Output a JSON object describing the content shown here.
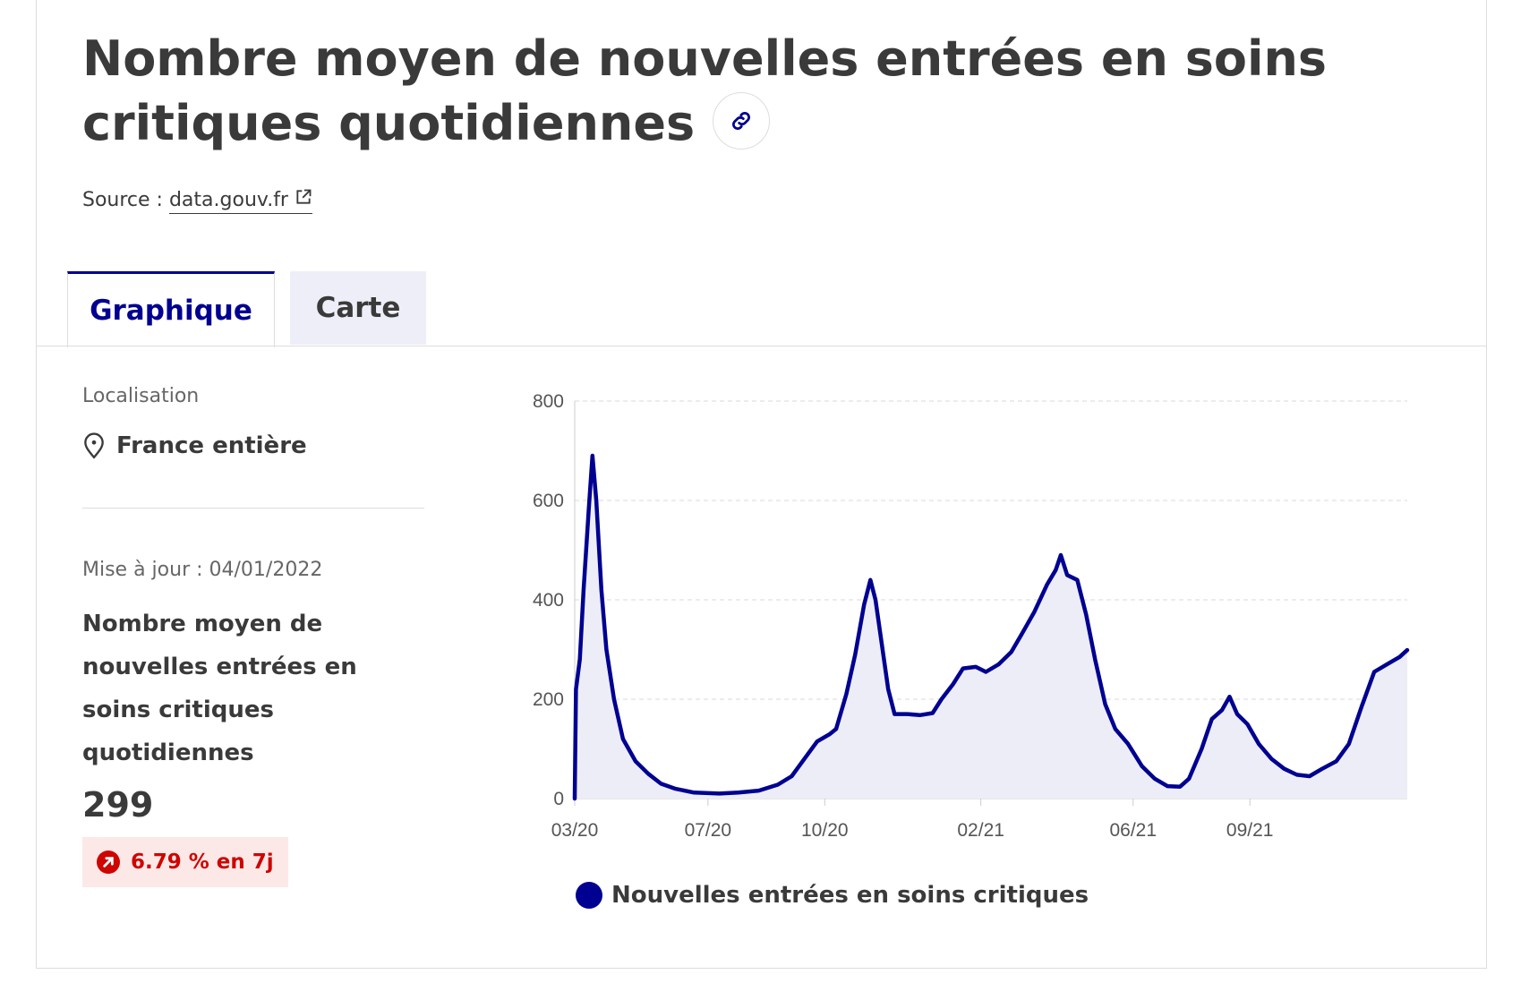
{
  "header": {
    "title": "Nombre moyen de nouvelles entrées en soins critiques quotidiennes",
    "source_prefix": "Source :",
    "source_link": "data.gouv.fr",
    "link_icon": "link-icon",
    "external_icon": "external-link-icon"
  },
  "tabs": [
    {
      "label": "Graphique",
      "active": true
    },
    {
      "label": "Carte",
      "active": false
    }
  ],
  "sidebar": {
    "location_label": "Localisation",
    "location_value": "France entière",
    "location_icon": "map-pin-icon",
    "update_text": "Mise à jour : 04/01/2022",
    "kpi_label": "Nombre moyen de nouvelles entrées en soins critiques quotidiennes",
    "kpi_value": "299",
    "trend_text": "6.79 % en 7j",
    "trend_icon": "arrow-up-right-icon",
    "trend_color": "#ce0500"
  },
  "colors": {
    "accent": "#000091",
    "fill": "#ededf7",
    "grid": "#d8d8d8"
  },
  "chart_data": {
    "type": "area",
    "title": "",
    "xlabel": "",
    "ylabel": "",
    "ylim": [
      0,
      800
    ],
    "yticks": [
      0,
      200,
      400,
      600,
      800
    ],
    "xtick_labels": [
      "03/20",
      "07/20",
      "10/20",
      "02/21",
      "06/21",
      "09/21"
    ],
    "xtick_dates": [
      "2020-03-18",
      "2020-07-01",
      "2020-10-01",
      "2021-02-01",
      "2021-06-01",
      "2021-09-01"
    ],
    "xlim": [
      "2020-03-18",
      "2022-01-03"
    ],
    "grid": true,
    "legend_position": "bottom",
    "series": [
      {
        "name": "Nouvelles entrées en soins critiques",
        "color": "#000091",
        "points": [
          [
            "2020-03-18",
            0
          ],
          [
            "2020-03-19",
            220
          ],
          [
            "2020-03-22",
            280
          ],
          [
            "2020-03-25",
            420
          ],
          [
            "2020-03-29",
            580
          ],
          [
            "2020-04-01",
            690
          ],
          [
            "2020-04-04",
            600
          ],
          [
            "2020-04-08",
            420
          ],
          [
            "2020-04-12",
            300
          ],
          [
            "2020-04-18",
            200
          ],
          [
            "2020-04-25",
            120
          ],
          [
            "2020-05-05",
            75
          ],
          [
            "2020-05-15",
            50
          ],
          [
            "2020-05-25",
            30
          ],
          [
            "2020-06-05",
            20
          ],
          [
            "2020-06-20",
            12
          ],
          [
            "2020-07-10",
            10
          ],
          [
            "2020-07-25",
            12
          ],
          [
            "2020-08-10",
            16
          ],
          [
            "2020-08-25",
            28
          ],
          [
            "2020-09-05",
            45
          ],
          [
            "2020-09-15",
            80
          ],
          [
            "2020-09-25",
            115
          ],
          [
            "2020-10-05",
            130
          ],
          [
            "2020-10-10",
            140
          ],
          [
            "2020-10-18",
            210
          ],
          [
            "2020-10-25",
            290
          ],
          [
            "2020-11-01",
            390
          ],
          [
            "2020-11-06",
            440
          ],
          [
            "2020-11-10",
            400
          ],
          [
            "2020-11-15",
            310
          ],
          [
            "2020-11-20",
            220
          ],
          [
            "2020-11-25",
            170
          ],
          [
            "2020-12-05",
            170
          ],
          [
            "2020-12-15",
            168
          ],
          [
            "2020-12-25",
            172
          ],
          [
            "2021-01-01",
            200
          ],
          [
            "2021-01-10",
            230
          ],
          [
            "2021-01-18",
            262
          ],
          [
            "2021-01-28",
            265
          ],
          [
            "2021-02-05",
            255
          ],
          [
            "2021-02-15",
            270
          ],
          [
            "2021-02-25",
            295
          ],
          [
            "2021-03-05",
            330
          ],
          [
            "2021-03-15",
            375
          ],
          [
            "2021-03-25",
            430
          ],
          [
            "2021-04-01",
            460
          ],
          [
            "2021-04-05",
            490
          ],
          [
            "2021-04-10",
            450
          ],
          [
            "2021-04-18",
            440
          ],
          [
            "2021-04-25",
            370
          ],
          [
            "2021-05-02",
            280
          ],
          [
            "2021-05-10",
            190
          ],
          [
            "2021-05-18",
            140
          ],
          [
            "2021-05-28",
            110
          ],
          [
            "2021-06-08",
            65
          ],
          [
            "2021-06-18",
            40
          ],
          [
            "2021-06-28",
            25
          ],
          [
            "2021-07-08",
            24
          ],
          [
            "2021-07-15",
            40
          ],
          [
            "2021-07-25",
            100
          ],
          [
            "2021-08-02",
            160
          ],
          [
            "2021-08-10",
            178
          ],
          [
            "2021-08-16",
            205
          ],
          [
            "2021-08-22",
            170
          ],
          [
            "2021-08-30",
            150
          ],
          [
            "2021-09-08",
            110
          ],
          [
            "2021-09-18",
            80
          ],
          [
            "2021-09-28",
            60
          ],
          [
            "2021-10-08",
            48
          ],
          [
            "2021-10-18",
            45
          ],
          [
            "2021-10-28",
            60
          ],
          [
            "2021-11-08",
            75
          ],
          [
            "2021-11-18",
            110
          ],
          [
            "2021-11-28",
            185
          ],
          [
            "2021-12-08",
            255
          ],
          [
            "2021-12-18",
            270
          ],
          [
            "2021-12-28",
            285
          ],
          [
            "2022-01-03",
            299
          ]
        ]
      }
    ]
  }
}
